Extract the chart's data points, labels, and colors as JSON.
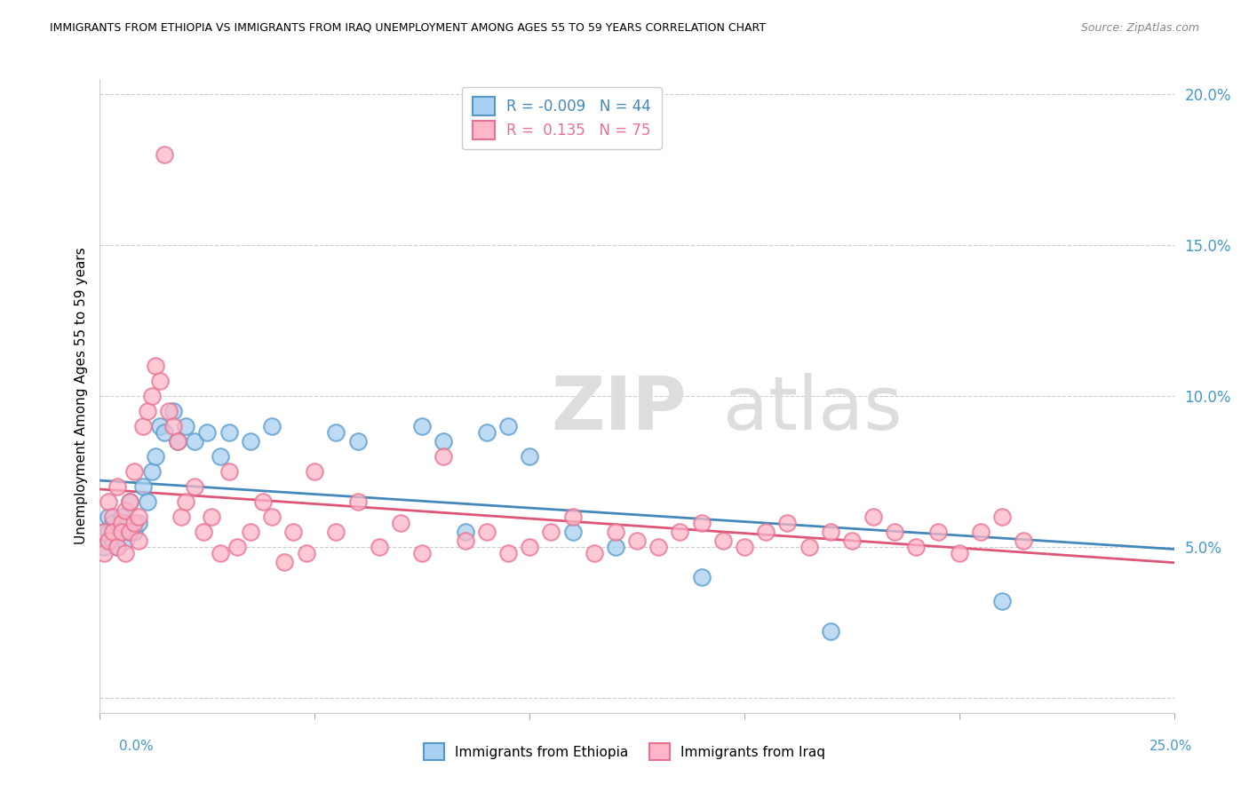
{
  "title": "IMMIGRANTS FROM ETHIOPIA VS IMMIGRANTS FROM IRAQ UNEMPLOYMENT AMONG AGES 55 TO 59 YEARS CORRELATION CHART",
  "source": "Source: ZipAtlas.com",
  "ylabel": "Unemployment Among Ages 55 to 59 years",
  "xlim": [
    0.0,
    0.25
  ],
  "ylim": [
    -0.005,
    0.205
  ],
  "yticks": [
    0.0,
    0.05,
    0.1,
    0.15,
    0.2
  ],
  "ytick_labels": [
    "",
    "5.0%",
    "10.0%",
    "15.0%",
    "20.0%"
  ],
  "legend1_r": "-0.009",
  "legend1_n": "44",
  "legend2_r": "0.135",
  "legend2_n": "75",
  "color_ethiopia": "#a8d0f0",
  "color_iraq": "#ffb6c8",
  "color_ethiopia_edge": "#5599cc",
  "color_iraq_edge": "#e87090",
  "color_ethiopia_line": "#4488bb",
  "color_iraq_line": "#dd5577",
  "ethiopia_x": [
    0.001,
    0.001,
    0.002,
    0.002,
    0.003,
    0.003,
    0.004,
    0.004,
    0.005,
    0.005,
    0.006,
    0.006,
    0.007,
    0.007,
    0.008,
    0.009,
    0.01,
    0.011,
    0.012,
    0.013,
    0.014,
    0.015,
    0.017,
    0.018,
    0.02,
    0.022,
    0.025,
    0.028,
    0.03,
    0.035,
    0.04,
    0.055,
    0.06,
    0.075,
    0.08,
    0.085,
    0.09,
    0.095,
    0.1,
    0.11,
    0.12,
    0.14,
    0.17,
    0.21
  ],
  "ethiopia_y": [
    0.055,
    0.05,
    0.055,
    0.06,
    0.052,
    0.058,
    0.055,
    0.05,
    0.06,
    0.055,
    0.052,
    0.058,
    0.055,
    0.065,
    0.055,
    0.058,
    0.07,
    0.065,
    0.075,
    0.08,
    0.09,
    0.088,
    0.095,
    0.085,
    0.09,
    0.085,
    0.088,
    0.08,
    0.088,
    0.085,
    0.09,
    0.088,
    0.085,
    0.09,
    0.085,
    0.055,
    0.088,
    0.09,
    0.08,
    0.055,
    0.05,
    0.04,
    0.022,
    0.032
  ],
  "iraq_x": [
    0.001,
    0.001,
    0.002,
    0.002,
    0.003,
    0.003,
    0.004,
    0.004,
    0.005,
    0.005,
    0.006,
    0.006,
    0.007,
    0.007,
    0.008,
    0.008,
    0.009,
    0.009,
    0.01,
    0.011,
    0.012,
    0.013,
    0.014,
    0.015,
    0.016,
    0.017,
    0.018,
    0.019,
    0.02,
    0.022,
    0.024,
    0.026,
    0.028,
    0.03,
    0.032,
    0.035,
    0.038,
    0.04,
    0.043,
    0.045,
    0.048,
    0.05,
    0.055,
    0.06,
    0.065,
    0.07,
    0.075,
    0.08,
    0.085,
    0.09,
    0.095,
    0.1,
    0.105,
    0.11,
    0.115,
    0.12,
    0.125,
    0.13,
    0.135,
    0.14,
    0.145,
    0.15,
    0.155,
    0.16,
    0.165,
    0.17,
    0.175,
    0.18,
    0.185,
    0.19,
    0.195,
    0.2,
    0.205,
    0.21,
    0.215
  ],
  "iraq_y": [
    0.055,
    0.048,
    0.065,
    0.052,
    0.06,
    0.055,
    0.07,
    0.05,
    0.058,
    0.055,
    0.062,
    0.048,
    0.065,
    0.055,
    0.075,
    0.058,
    0.052,
    0.06,
    0.09,
    0.095,
    0.1,
    0.11,
    0.105,
    0.18,
    0.095,
    0.09,
    0.085,
    0.06,
    0.065,
    0.07,
    0.055,
    0.06,
    0.048,
    0.075,
    0.05,
    0.055,
    0.065,
    0.06,
    0.045,
    0.055,
    0.048,
    0.075,
    0.055,
    0.065,
    0.05,
    0.058,
    0.048,
    0.08,
    0.052,
    0.055,
    0.048,
    0.05,
    0.055,
    0.06,
    0.048,
    0.055,
    0.052,
    0.05,
    0.055,
    0.058,
    0.052,
    0.05,
    0.055,
    0.058,
    0.05,
    0.055,
    0.052,
    0.06,
    0.055,
    0.05,
    0.055,
    0.048,
    0.055,
    0.06,
    0.052
  ]
}
